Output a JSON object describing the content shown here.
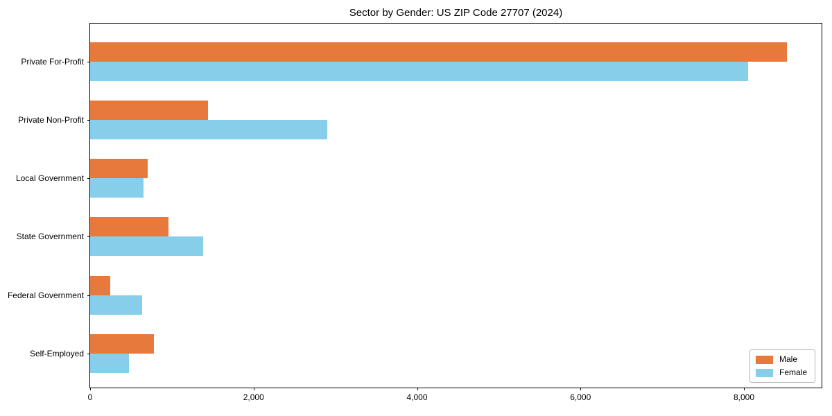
{
  "title": "Sector by Gender: US ZIP Code 27707 (2024)",
  "chart_data": {
    "type": "bar",
    "orientation": "horizontal",
    "title": "Sector by Gender: US ZIP Code 27707 (2024)",
    "categories": [
      "Private For-Profit",
      "Private Non-Profit",
      "Local Government",
      "State Government",
      "Federal Government",
      "Self-Employed"
    ],
    "series": [
      {
        "name": "Male",
        "color": "#e8793d",
        "values": [
          8525,
          1440,
          700,
          960,
          250,
          780
        ]
      },
      {
        "name": "Female",
        "color": "#87ceeb",
        "values": [
          8050,
          2905,
          650,
          1380,
          640,
          475
        ]
      }
    ],
    "xlabel": "",
    "ylabel": "",
    "xlim": [
      0,
      8950
    ],
    "xticks": [
      0,
      2000,
      4000,
      6000,
      8000
    ],
    "xtick_labels": [
      "0",
      "2,000",
      "4,000",
      "6,000",
      "8,000"
    ],
    "grid": false,
    "legend_position": "lower-right"
  },
  "colors": {
    "male": "#e8793d",
    "female": "#87ceeb",
    "spine": "#000000",
    "legend_border": "#b3b3b3"
  }
}
